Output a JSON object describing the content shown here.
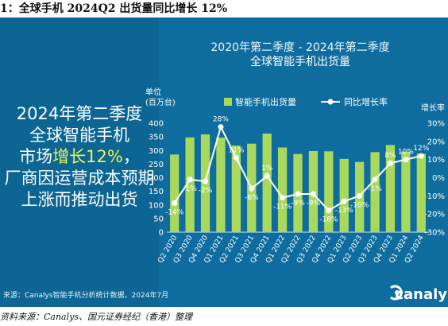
{
  "document": {
    "title": "1：全球手机 2024Q2 出货量同比增长 12%",
    "source_note": "资料来源：Canalys、国元证券经纪（香港）整理"
  },
  "figure": {
    "header_line1": "2020年第二季度 - 2024年第二季度",
    "header_line2": "全球智能手机出货量",
    "left_text": {
      "line1": "2024年第二季度",
      "line2": "全球智能手机",
      "line3_prefix": "市场",
      "line3_highlight": "增长12%",
      "line3_suffix": "，",
      "line4": "厂商因运营成本预期",
      "line5": "上涨而推动出货"
    },
    "source_text": "来源：Canalys智能手机分析统计数据，2024年7月",
    "logo_text": "canaly",
    "colors": {
      "background": "#0e6d9e",
      "bar": "#a9d95c",
      "line": "#ffffff",
      "highlight": "#e8f554"
    }
  },
  "chart_data": {
    "type": "bar",
    "categories": [
      "Q2 2020",
      "Q3 2020",
      "Q4 2020",
      "Q1 2021",
      "Q2 2021",
      "Q3 2021",
      "Q4 2021",
      "Q1 2022",
      "Q2 2022",
      "Q3 2022",
      "Q4 2022",
      "Q1 2023",
      "Q2 2023",
      "Q3 2023",
      "Q4 2023",
      "Q1 2024",
      "Q2 2024"
    ],
    "left_unit_label": "单位\n(百万台)",
    "right_unit_label": "增长率",
    "ylim": [
      0,
      400
    ],
    "y_ticks": [
      "0",
      "50",
      "100",
      "150",
      "200",
      "250",
      "300",
      "350",
      "400"
    ],
    "y2lim": [
      -30,
      30
    ],
    "y2_ticks": [
      "-30%",
      "-20%",
      "-10%",
      "0%",
      "10%",
      "20%",
      "30%"
    ],
    "grid": false,
    "legend_position": "top",
    "series": [
      {
        "name": "智能手机出货量",
        "type": "bar",
        "values": [
          285,
          348,
          359,
          347,
          318,
          325,
          362,
          311,
          287,
          298,
          297,
          269,
          258,
          294,
          320,
          296,
          288
        ]
      },
      {
        "name": "同比增长率",
        "type": "line",
        "values": [
          -14,
          -1,
          -2,
          28,
          11,
          -6,
          1,
          -11,
          -9,
          -9,
          -18,
          -13,
          -10,
          -1,
          8,
          10,
          12
        ],
        "labels": [
          "-14%",
          "-1%",
          "-2%",
          "28%",
          "11%",
          "-6%",
          "1%",
          "-11%",
          "-9%",
          "-9%",
          "-18%",
          "-13%",
          "-10%",
          "-1%",
          "8%",
          "10%",
          "12%"
        ]
      }
    ]
  }
}
